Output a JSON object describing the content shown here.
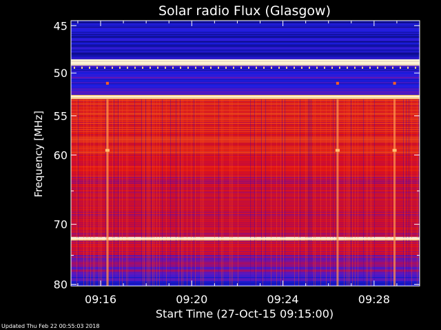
{
  "chart_data": {
    "type": "heatmap",
    "title": "Solar radio Flux (Glasgow)",
    "xlabel": "Start Time (27-Oct-15 09:15:00)",
    "ylabel": "Frequency [MHz]",
    "x_ticks": [
      "09:16",
      "09:20",
      "09:24",
      "09:28"
    ],
    "x_tick_minutes": [
      1,
      5,
      9,
      13
    ],
    "xlim_minutes": [
      -0.3,
      15.0
    ],
    "y_ticks": [
      45,
      50,
      55,
      60,
      70,
      80
    ],
    "ylim": [
      44.5,
      80.3
    ],
    "y_scale": "log",
    "colormap": "blue-red-yellow",
    "bands": [
      {
        "from": 44.5,
        "to": 45.0,
        "level": 0.05
      },
      {
        "from": 45.0,
        "to": 48.5,
        "level": 0.1
      },
      {
        "from": 48.5,
        "to": 49.2,
        "level": 1.0
      },
      {
        "from": 49.2,
        "to": 50.0,
        "level": 0.15
      },
      {
        "from": 50.0,
        "to": 52.5,
        "level": 0.2
      },
      {
        "from": 52.5,
        "to": 53.0,
        "level": 0.9
      },
      {
        "from": 53.0,
        "to": 60.0,
        "level": 0.62
      },
      {
        "from": 60.0,
        "to": 63.0,
        "level": 0.55
      },
      {
        "from": 63.0,
        "to": 70.0,
        "level": 0.5
      },
      {
        "from": 70.0,
        "to": 72.0,
        "level": 0.48
      },
      {
        "from": 72.0,
        "to": 72.6,
        "level": 0.9
      },
      {
        "from": 72.6,
        "to": 75.0,
        "level": 0.45
      },
      {
        "from": 75.0,
        "to": 78.0,
        "level": 0.32
      },
      {
        "from": 78.0,
        "to": 80.3,
        "level": 0.18
      }
    ],
    "bright_lines_mhz": [
      48.6,
      48.9,
      52.7,
      72.3
    ],
    "bursts_minutes": [
      1.3,
      11.4,
      13.9
    ]
  },
  "footer": "Updated Thu Feb 22 00:55:03 2018"
}
